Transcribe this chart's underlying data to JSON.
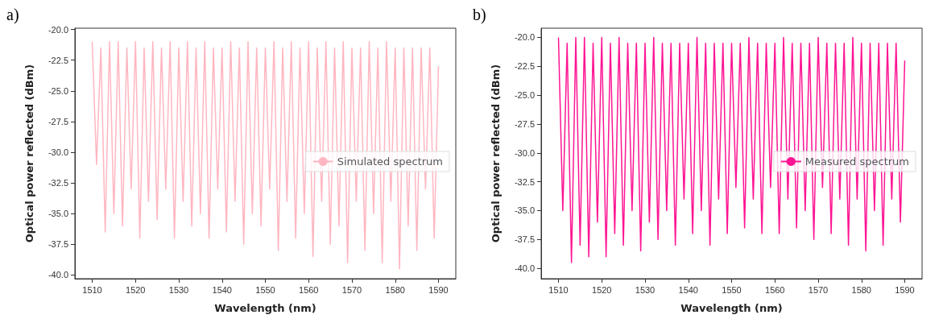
{
  "chart_data": [
    {
      "type": "line",
      "title": "a)",
      "xlabel": "Wavelength (nm)",
      "ylabel": "Optical power reflected (dBm)",
      "legend": "right",
      "grid": false,
      "marker": "none",
      "line_style": "solid",
      "x": [
        1510,
        1511,
        1512,
        1513,
        1514,
        1515,
        1516,
        1517,
        1518,
        1519,
        1520,
        1521,
        1522,
        1523,
        1524,
        1525,
        1526,
        1527,
        1528,
        1529,
        1530,
        1531,
        1532,
        1533,
        1534,
        1535,
        1536,
        1537,
        1538,
        1539,
        1540,
        1541,
        1542,
        1543,
        1544,
        1545,
        1546,
        1547,
        1548,
        1549,
        1550,
        1551,
        1552,
        1553,
        1554,
        1555,
        1556,
        1557,
        1558,
        1559,
        1560,
        1561,
        1562,
        1563,
        1564,
        1565,
        1566,
        1567,
        1568,
        1569,
        1570,
        1571,
        1572,
        1573,
        1574,
        1575,
        1576,
        1577,
        1578,
        1579,
        1580,
        1581,
        1582,
        1583,
        1584,
        1585,
        1586,
        1587,
        1588,
        1589,
        1590
      ],
      "xlim": [
        1506,
        1594
      ],
      "xticks": [
        1510,
        1520,
        1530,
        1540,
        1550,
        1560,
        1570,
        1580,
        1590
      ],
      "ylim": [
        -40.3,
        -19.9
      ],
      "yticks": [
        {
          "value": -40,
          "label": "-40.0"
        },
        {
          "value": -37.5,
          "label": "-37.5"
        },
        {
          "value": -35,
          "label": "-35.0"
        },
        {
          "value": -32.5,
          "label": "-32.5"
        },
        {
          "value": -30,
          "label": "-30.0"
        },
        {
          "value": -27.5,
          "label": "-27.5"
        },
        {
          "value": -25,
          "label": "-25.0"
        },
        {
          "value": -22.5,
          "label": "-22.5"
        },
        {
          "value": -20,
          "label": "-20.0"
        }
      ],
      "series": [
        {
          "name": "Simulated spectrum",
          "color": "#ffb6c1",
          "values": [
            -21,
            -31,
            -21.5,
            -36.5,
            -21,
            -35,
            -21,
            -36,
            -21.5,
            -33,
            -21,
            -37,
            -21.5,
            -34,
            -21,
            -35.5,
            -21.5,
            -33,
            -21,
            -37,
            -21.5,
            -34,
            -21,
            -36,
            -21.5,
            -35,
            -21,
            -37,
            -21.5,
            -33,
            -21.5,
            -36.5,
            -21,
            -34,
            -21.5,
            -37.5,
            -21,
            -35,
            -21.5,
            -36,
            -21.5,
            -33,
            -21,
            -38,
            -21.5,
            -34,
            -21,
            -37,
            -21.5,
            -35,
            -21,
            -38.5,
            -21.5,
            -34,
            -21,
            -37.5,
            -21.5,
            -36,
            -21,
            -39,
            -21.5,
            -34,
            -21.5,
            -38,
            -21,
            -35,
            -21.5,
            -39,
            -21,
            -34,
            -21.5,
            -39.5,
            -21.5,
            -36,
            -21.5,
            -38,
            -21.5,
            -33,
            -21.5,
            -37,
            -23
          ]
        }
      ]
    },
    {
      "type": "line",
      "title": "b)",
      "xlabel": "Wavelength (nm)",
      "ylabel": "Optical power reflected (dBm)",
      "legend": "right",
      "grid": false,
      "marker": "none",
      "line_style": "solid",
      "x": [
        1510,
        1511,
        1512,
        1513,
        1514,
        1515,
        1516,
        1517,
        1518,
        1519,
        1520,
        1521,
        1522,
        1523,
        1524,
        1525,
        1526,
        1527,
        1528,
        1529,
        1530,
        1531,
        1532,
        1533,
        1534,
        1535,
        1536,
        1537,
        1538,
        1539,
        1540,
        1541,
        1542,
        1543,
        1544,
        1545,
        1546,
        1547,
        1548,
        1549,
        1550,
        1551,
        1552,
        1553,
        1554,
        1555,
        1556,
        1557,
        1558,
        1559,
        1560,
        1561,
        1562,
        1563,
        1564,
        1565,
        1566,
        1567,
        1568,
        1569,
        1570,
        1571,
        1572,
        1573,
        1574,
        1575,
        1576,
        1577,
        1578,
        1579,
        1580,
        1581,
        1582,
        1583,
        1584,
        1585,
        1586,
        1587,
        1588,
        1589,
        1590
      ],
      "xlim": [
        1506,
        1594
      ],
      "xticks": [
        1510,
        1520,
        1530,
        1540,
        1550,
        1560,
        1570,
        1580,
        1590
      ],
      "ylim": [
        -40.9,
        -19.2
      ],
      "yticks": [
        {
          "value": -40,
          "label": "-40.0"
        },
        {
          "value": -37.5,
          "label": "-37.5"
        },
        {
          "value": -35,
          "label": "-35.0"
        },
        {
          "value": -32.5,
          "label": "-32.5"
        },
        {
          "value": -30,
          "label": "-30.0"
        },
        {
          "value": -27.5,
          "label": "-27.5"
        },
        {
          "value": -25,
          "label": "-25.0"
        },
        {
          "value": -22.5,
          "label": "-22.5"
        },
        {
          "value": -20,
          "label": "-20.0"
        }
      ],
      "series": [
        {
          "name": "Measured spectrum",
          "color": "#ff1493",
          "values": [
            -20,
            -35,
            -20.5,
            -39.5,
            -20,
            -38,
            -20,
            -39,
            -20.5,
            -36,
            -20,
            -39,
            -20.5,
            -37,
            -20,
            -38,
            -20.5,
            -35,
            -20.5,
            -38.5,
            -20.5,
            -36,
            -20,
            -37.5,
            -20.5,
            -35,
            -20.5,
            -38,
            -20.5,
            -34,
            -20.5,
            -37,
            -20,
            -35,
            -20.5,
            -38,
            -20.5,
            -34,
            -20.5,
            -37,
            -20.5,
            -33,
            -20.5,
            -36.5,
            -20,
            -34,
            -20.5,
            -37,
            -20.5,
            -33,
            -20.5,
            -37,
            -20,
            -34,
            -20.5,
            -36.5,
            -20.5,
            -35,
            -20.5,
            -37.5,
            -20,
            -33,
            -20.5,
            -37,
            -20.5,
            -34,
            -20.5,
            -38,
            -20,
            -34,
            -20.5,
            -38.5,
            -20.5,
            -35,
            -20.5,
            -38,
            -20.5,
            -34,
            -20.5,
            -36,
            -22
          ]
        }
      ]
    }
  ]
}
